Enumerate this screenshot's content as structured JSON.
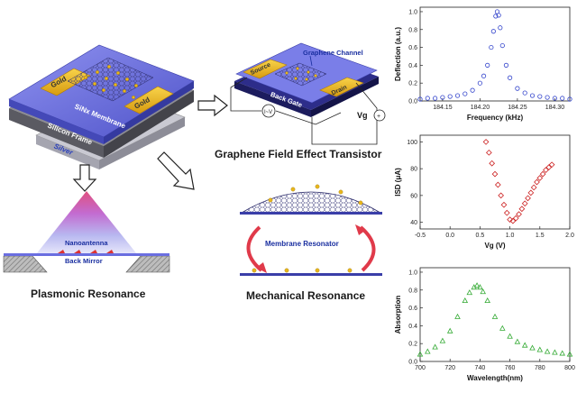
{
  "device": {
    "gold_left": "Gold",
    "gold_right": "Gold",
    "membrane": "SiNx Membrane",
    "frame": "Silicon Frame",
    "silver": "Silver"
  },
  "transistor": {
    "source": "Source",
    "drain": "Drain",
    "channel": "Graphene Channel",
    "back_gate": "Back Gate",
    "vg_label": "Vg",
    "caption": "Graphene Field Effect Transistor"
  },
  "plasmonic": {
    "nanoantenna": "Nanoantenna",
    "back_mirror": "Back Mirror",
    "caption": "Plasmonic Resonance"
  },
  "mechanical": {
    "membrane_resonator": "Membrane Resonator",
    "caption": "Mechanical Resonance"
  },
  "colors": {
    "gold": "#e8b61c",
    "membrane": "#6a6ee0",
    "deflection_series": "#3344cc",
    "current_series": "#cc2222",
    "absorption_series": "#33aa33"
  },
  "chart_data": [
    {
      "type": "scatter",
      "xlabel": "Frequency (kHz)",
      "ylabel": "Deflection (a.u.)",
      "xlim": [
        184.12,
        184.32
      ],
      "ylim": [
        0.0,
        1.05
      ],
      "xticks": [
        "184.15",
        "184.20",
        "184.25",
        "184.30"
      ],
      "yticks": [
        "0.0",
        "0.2",
        "0.4",
        "0.6",
        "0.8",
        "1.0"
      ],
      "marker": "open-circle",
      "grid": false,
      "x": [
        184.12,
        184.13,
        184.14,
        184.15,
        184.16,
        184.17,
        184.18,
        184.19,
        184.2,
        184.205,
        184.21,
        184.215,
        184.218,
        184.221,
        184.223,
        184.225,
        184.227,
        184.23,
        184.235,
        184.24,
        184.25,
        184.26,
        184.27,
        184.28,
        184.29,
        184.3,
        184.31,
        184.32
      ],
      "y": [
        0.02,
        0.03,
        0.03,
        0.04,
        0.05,
        0.06,
        0.08,
        0.12,
        0.2,
        0.28,
        0.4,
        0.6,
        0.78,
        0.95,
        1.0,
        0.96,
        0.82,
        0.62,
        0.4,
        0.26,
        0.14,
        0.09,
        0.06,
        0.05,
        0.04,
        0.03,
        0.03,
        0.02
      ]
    },
    {
      "type": "scatter",
      "xlabel": "Vg (V)",
      "ylabel": "ISD (μA)",
      "xlim": [
        -0.5,
        2.0
      ],
      "ylim": [
        35,
        105
      ],
      "xticks": [
        "-0.5",
        "0.0",
        "0.5",
        "1.0",
        "1.5",
        "2.0"
      ],
      "yticks": [
        "40",
        "60",
        "80",
        "100"
      ],
      "marker": "open-diamond",
      "grid": false,
      "x": [
        0.6,
        0.65,
        0.7,
        0.75,
        0.8,
        0.85,
        0.9,
        0.95,
        1.0,
        1.05,
        1.1,
        1.15,
        1.2,
        1.25,
        1.3,
        1.35,
        1.4,
        1.45,
        1.5,
        1.55,
        1.6,
        1.65,
        1.7
      ],
      "y": [
        100,
        92,
        84,
        76,
        68,
        60,
        53,
        47,
        42,
        41,
        43,
        46,
        50,
        54,
        58,
        62,
        66,
        70,
        73,
        76,
        79,
        81,
        83
      ]
    },
    {
      "type": "scatter",
      "xlabel": "Wavelength(nm)",
      "ylabel": "Absorption",
      "xlim": [
        700,
        800
      ],
      "ylim": [
        0.0,
        1.05
      ],
      "xticks": [
        "700",
        "720",
        "740",
        "760",
        "780",
        "800"
      ],
      "yticks": [
        "0.0",
        "0.2",
        "0.4",
        "0.6",
        "0.8",
        "1.0"
      ],
      "marker": "open-triangle",
      "grid": false,
      "x": [
        700,
        705,
        710,
        715,
        720,
        725,
        730,
        733,
        736,
        738,
        740,
        742,
        745,
        750,
        755,
        760,
        765,
        770,
        775,
        780,
        785,
        790,
        795,
        800
      ],
      "y": [
        0.08,
        0.11,
        0.16,
        0.23,
        0.34,
        0.5,
        0.68,
        0.77,
        0.83,
        0.85,
        0.83,
        0.78,
        0.68,
        0.5,
        0.37,
        0.28,
        0.22,
        0.18,
        0.15,
        0.13,
        0.11,
        0.1,
        0.09,
        0.08
      ]
    }
  ]
}
